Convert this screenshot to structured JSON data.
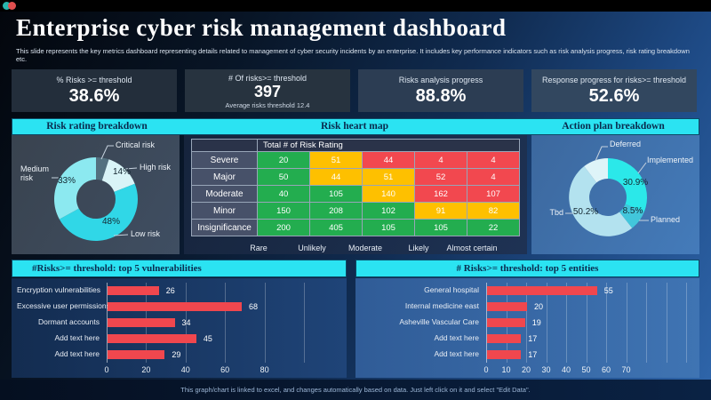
{
  "titlebar": {
    "dot_colors": [
      "#28b5ad",
      "#e04f4f"
    ]
  },
  "header": {
    "title": "Enterprise cyber risk management dashboard",
    "subtitle": "This slide represents the key metrics dashboard representing details related to management  of cyber security incidents by an enterprise. It includes key performance indicators such as risk analysis progress, risk rating breakdown etc."
  },
  "kpis": [
    {
      "label": "% Risks >= threshold",
      "value": "38.6%",
      "sub": ""
    },
    {
      "label": "# Of risks>= threshold",
      "value": "397",
      "sub": "Average risks threshold 12.4"
    },
    {
      "label": "Risks analysis progress",
      "value": "88.8%",
      "sub": ""
    },
    {
      "label": "Response progress for risks>= threshold",
      "value": "52.6%",
      "sub": ""
    }
  ],
  "section_titles": {
    "risk_rating": "Risk rating breakdown",
    "heat_map": "Risk heart map",
    "action_plan": "Action plan breakdown",
    "vulnerabilities": "#Risks>= threshold: top 5 vulnerabilities",
    "entities": "# Risks>= threshold: top 5 entities"
  },
  "footer": {
    "note": "This graph/chart is linked to excel, and changes automatically based on data. Just left click on it and select \"Edit Data\"."
  },
  "chart_data": [
    {
      "id": "risk-rating-donut",
      "type": "pie",
      "donut": true,
      "title": "Risk rating breakdown",
      "slices": [
        {
          "label": "Critical risk",
          "value": 5,
          "pct_label": "",
          "color": "#53707f"
        },
        {
          "label": "High risk",
          "value": 14,
          "pct_label": "14%",
          "color": "#d9f4f7"
        },
        {
          "label": "Low risk",
          "value": 48,
          "pct_label": "48%",
          "color": "#30d7e7"
        },
        {
          "label": "Medium risk",
          "value": 33,
          "pct_label": "33%",
          "color": "#8ce9f0"
        }
      ]
    },
    {
      "id": "risk-heat-map",
      "type": "heatmap",
      "title": "Risk heart map",
      "col_header": "Total # of Risk Rating",
      "row_labels": [
        "Severe",
        "Major",
        "Moderate",
        "Minor",
        "Insignificance"
      ],
      "x_labels": [
        "Rare",
        "Unlikely",
        "Moderate",
        "Likely",
        "Almost certain"
      ],
      "values": [
        [
          20,
          51,
          44,
          4,
          4
        ],
        [
          50,
          44,
          51,
          52,
          4
        ],
        [
          40,
          105,
          140,
          162,
          107
        ],
        [
          150,
          208,
          102,
          91,
          82
        ],
        [
          200,
          405,
          105,
          105,
          22
        ]
      ],
      "cell_colors": [
        [
          "green",
          "yellow",
          "red",
          "red",
          "red"
        ],
        [
          "green",
          "yellow",
          "yellow",
          "red",
          "red"
        ],
        [
          "green",
          "green",
          "yellow",
          "red",
          "red"
        ],
        [
          "green",
          "green",
          "green",
          "yellow",
          "yellow"
        ],
        [
          "green",
          "green",
          "green",
          "green",
          "green"
        ]
      ],
      "palette": {
        "green": "#23ad4f",
        "yellow": "#fec000",
        "red": "#f2484f"
      }
    },
    {
      "id": "action-plan-donut",
      "type": "pie",
      "donut": true,
      "title": "Action plan breakdown",
      "slices": [
        {
          "label": "Implemented",
          "value": 30.9,
          "pct_label": "30.9%",
          "color": "#2be8e9"
        },
        {
          "label": "Planned",
          "value": 8.5,
          "pct_label": "8.5%",
          "color": "#42c6db"
        },
        {
          "label": "Tbd",
          "value": 50.2,
          "pct_label": "50.2%",
          "color": "#b3e2ef"
        },
        {
          "label": "Deferred",
          "value": 10.4,
          "pct_label": "",
          "color": "#def4f8"
        }
      ]
    },
    {
      "id": "top-vulnerabilities-bar",
      "type": "bar",
      "orientation": "horizontal",
      "title": "#Risks>= threshold: top 5 vulnerabilities",
      "categories": [
        "Encryption vulnerabilities",
        "Excessive user permissions",
        "Dormant accounts",
        "Add text here",
        "Add text here"
      ],
      "values": [
        26,
        68,
        34,
        45,
        29
      ],
      "xticks": [
        0,
        20,
        40,
        60,
        80
      ],
      "bar_color": "#f0474e"
    },
    {
      "id": "top-entities-bar",
      "type": "bar",
      "orientation": "horizontal",
      "title": "# Risks>= threshold: top 5 entities",
      "categories": [
        "General hospital",
        "Internal medicine east",
        "Asheville Vascular Care",
        "Add text here",
        "Add text here"
      ],
      "values": [
        55,
        20,
        19,
        17,
        17
      ],
      "xticks": [
        0,
        10,
        20,
        30,
        40,
        50,
        60,
        70
      ],
      "bar_color": "#f0474e"
    }
  ]
}
